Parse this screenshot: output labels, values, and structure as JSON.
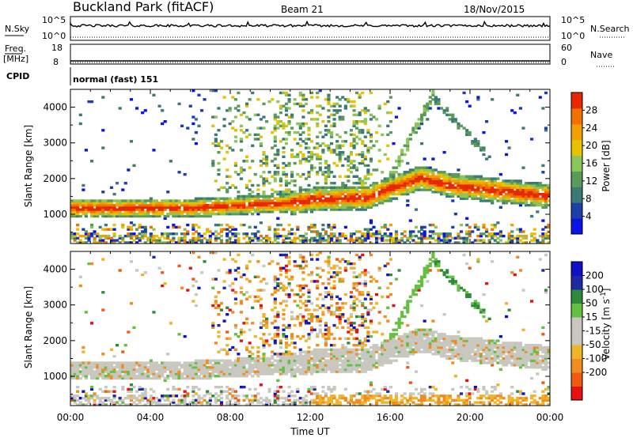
{
  "header": {
    "station": "Buckland Park (fitACF)",
    "beam": "Beam 21",
    "date": "18/Nov/2015"
  },
  "noise_panel": {
    "left_label": "N.Sky",
    "right_label": "N.Search",
    "left_ticks": [
      "10^5",
      "10^0"
    ],
    "right_ticks": [
      "10^5",
      "10^0"
    ]
  },
  "freq_panel": {
    "left_label": "Freq.",
    "left_unit": "[MHz]",
    "right_label": "Nave",
    "left_ticks": [
      "18",
      "8"
    ],
    "right_ticks": [
      "60",
      "0"
    ]
  },
  "cpid_panel": {
    "label": "CPID",
    "program": "normal (fast) 151"
  },
  "colors": {
    "power": [
      "#0a14e6",
      "#1e3fa8",
      "#3c7a78",
      "#5a9a5a",
      "#8cc65a",
      "#e6c200",
      "#f0a000",
      "#f07000",
      "#e82800"
    ],
    "velocity": [
      "#e81010",
      "#f05a10",
      "#f08c20",
      "#f0b428",
      "#c8c8c0",
      "#c8c8c0",
      "#64c040",
      "#2e8a3a",
      "#1e2aa0",
      "#1010c8"
    ]
  },
  "chart_data": [
    {
      "type": "heatmap",
      "name": "power",
      "xlabel": "",
      "ylabel": "Slant Range [km]",
      "x_ticks": [
        "00:00",
        "04:00",
        "08:00",
        "12:00",
        "16:00",
        "20:00",
        "00:00"
      ],
      "x_range_hours": [
        0,
        24
      ],
      "y_ticks": [
        1000,
        2000,
        3000,
        4000
      ],
      "y_range_km": [
        180,
        4500
      ],
      "colorbar": {
        "label": "Power [dB]",
        "ticks": [
          4,
          8,
          12,
          16,
          20,
          24,
          28
        ],
        "range": [
          0,
          32
        ]
      },
      "features": [
        {
          "feature": "main scatter band",
          "time_h": [
            0,
            24
          ],
          "range_km": [
            1000,
            2400
          ],
          "power_db": [
            8,
            32
          ]
        },
        {
          "feature": "near-range echoes",
          "time_h": [
            0,
            24
          ],
          "range_km": [
            180,
            700
          ],
          "power_db": [
            4,
            28
          ]
        },
        {
          "feature": "rising arc",
          "time_h": [
            15.5,
            18
          ],
          "range_km": [
            1500,
            4500
          ],
          "power_db": [
            4,
            16
          ]
        }
      ]
    },
    {
      "type": "heatmap",
      "name": "velocity",
      "xlabel": "Time UT",
      "ylabel": "Slant Range [km]",
      "x_ticks": [
        "00:00",
        "04:00",
        "08:00",
        "12:00",
        "16:00",
        "20:00",
        "00:00"
      ],
      "x_range_hours": [
        0,
        24
      ],
      "y_ticks": [
        1000,
        2000,
        3000,
        4000
      ],
      "y_range_km": [
        180,
        4500
      ],
      "colorbar": {
        "label": "Velocity [m s^-1]",
        "ticks": [
          200,
          100,
          50,
          15,
          -15,
          -50,
          -100,
          -200
        ],
        "range": [
          -250,
          250
        ]
      },
      "features": [
        {
          "feature": "ground scatter (near zero)",
          "time_h": [
            0,
            24
          ],
          "range_km": [
            1000,
            2400
          ],
          "velocity_ms": [
            -15,
            15
          ]
        },
        {
          "feature": "negative velocity patches",
          "time_h": [
            7,
            13
          ],
          "range_km": [
            1500,
            3000
          ],
          "velocity_ms": [
            -100,
            -15
          ]
        },
        {
          "feature": "positive velocity arc",
          "time_h": [
            15.5,
            22
          ],
          "range_km": [
            2000,
            4500
          ],
          "velocity_ms": [
            15,
            100
          ]
        }
      ]
    }
  ]
}
